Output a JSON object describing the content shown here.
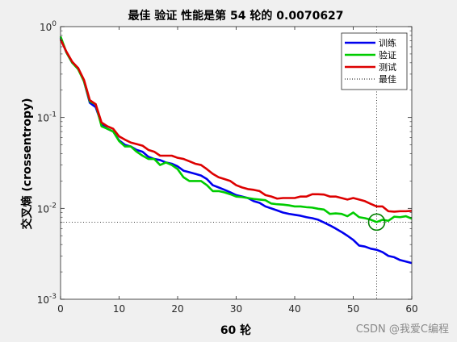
{
  "chart_data": {
    "type": "line",
    "title": "最佳 验证 性能是第 54 轮的 0.0070627",
    "xlabel": "60 轮",
    "ylabel": "交叉熵 (crossentropy)",
    "xlim": [
      0,
      60
    ],
    "ylim": [
      0.001,
      1
    ],
    "yscale": "log",
    "x_ticks": [
      0,
      10,
      20,
      30,
      40,
      50,
      60
    ],
    "x_tick_labels": [
      "0",
      "10",
      "20",
      "30",
      "40",
      "50",
      "60"
    ],
    "y_ticks": [
      0.001,
      0.01,
      0.1,
      1
    ],
    "y_tick_labels": [
      {
        "base": "10",
        "exp": "-3"
      },
      {
        "base": "10",
        "exp": "-2"
      },
      {
        "base": "10",
        "exp": "-1"
      },
      {
        "base": "10",
        "exp": "0"
      }
    ],
    "grid": false,
    "legend_position": "top-right",
    "series": [
      {
        "name": "训练",
        "color": "#0000ee",
        "x": [
          0,
          1,
          2,
          3,
          4,
          5,
          6,
          7,
          8,
          9,
          10,
          11,
          12,
          13,
          14,
          15,
          16,
          17,
          18,
          19,
          20,
          21,
          22,
          23,
          24,
          25,
          26,
          27,
          28,
          29,
          30,
          31,
          32,
          33,
          34,
          35,
          36,
          37,
          38,
          39,
          40,
          41,
          42,
          43,
          44,
          45,
          46,
          47,
          48,
          49,
          50,
          51,
          52,
          53,
          54,
          55,
          56,
          57,
          58,
          59,
          60
        ],
        "y": [
          0.75,
          0.52,
          0.4,
          0.35,
          0.25,
          0.145,
          0.13,
          0.085,
          0.075,
          0.07,
          0.056,
          0.05,
          0.048,
          0.044,
          0.042,
          0.037,
          0.035,
          0.034,
          0.032,
          0.031,
          0.029,
          0.026,
          0.025,
          0.024,
          0.023,
          0.021,
          0.018,
          0.017,
          0.016,
          0.015,
          0.014,
          0.0135,
          0.013,
          0.012,
          0.0115,
          0.0105,
          0.01,
          0.0095,
          0.009,
          0.0087,
          0.0085,
          0.0083,
          0.008,
          0.0078,
          0.0075,
          0.007,
          0.0065,
          0.006,
          0.0055,
          0.005,
          0.0045,
          0.0039,
          0.0038,
          0.0036,
          0.0035,
          0.0033,
          0.003,
          0.0029,
          0.0027,
          0.0026,
          0.0025
        ]
      },
      {
        "name": "验证",
        "color": "#00cc00",
        "x": [
          0,
          1,
          2,
          3,
          4,
          5,
          6,
          7,
          8,
          9,
          10,
          11,
          12,
          13,
          14,
          15,
          16,
          17,
          18,
          19,
          20,
          21,
          22,
          23,
          24,
          25,
          26,
          27,
          28,
          29,
          30,
          31,
          32,
          33,
          34,
          35,
          36,
          37,
          38,
          39,
          40,
          41,
          42,
          43,
          44,
          45,
          46,
          47,
          48,
          49,
          50,
          51,
          52,
          53,
          54,
          55,
          56,
          57,
          58,
          59,
          60
        ],
        "y": [
          0.78,
          0.52,
          0.4,
          0.34,
          0.25,
          0.15,
          0.14,
          0.08,
          0.075,
          0.07,
          0.055,
          0.048,
          0.048,
          0.042,
          0.038,
          0.035,
          0.035,
          0.03,
          0.032,
          0.03,
          0.027,
          0.022,
          0.02,
          0.02,
          0.02,
          0.018,
          0.0155,
          0.0155,
          0.015,
          0.0143,
          0.0135,
          0.0133,
          0.013,
          0.0127,
          0.0125,
          0.0123,
          0.0113,
          0.0111,
          0.011,
          0.0108,
          0.0105,
          0.0105,
          0.0103,
          0.0102,
          0.0099,
          0.0097,
          0.0087,
          0.0088,
          0.0087,
          0.0082,
          0.009,
          0.008,
          0.0078,
          0.0075,
          0.0070627,
          0.0075,
          0.0073,
          0.0081,
          0.008,
          0.0082,
          0.0077
        ]
      },
      {
        "name": "测试",
        "color": "#dd0000",
        "x": [
          0,
          1,
          2,
          3,
          4,
          5,
          6,
          7,
          8,
          9,
          10,
          11,
          12,
          13,
          14,
          15,
          16,
          17,
          18,
          19,
          20,
          21,
          22,
          23,
          24,
          25,
          26,
          27,
          28,
          29,
          30,
          31,
          32,
          33,
          34,
          35,
          36,
          37,
          38,
          39,
          40,
          41,
          42,
          43,
          44,
          45,
          46,
          47,
          48,
          49,
          50,
          51,
          52,
          53,
          54,
          55,
          56,
          57,
          58,
          59,
          60
        ],
        "y": [
          0.72,
          0.53,
          0.41,
          0.35,
          0.26,
          0.155,
          0.14,
          0.088,
          0.08,
          0.075,
          0.062,
          0.057,
          0.053,
          0.051,
          0.049,
          0.044,
          0.042,
          0.038,
          0.038,
          0.038,
          0.036,
          0.035,
          0.033,
          0.031,
          0.03,
          0.027,
          0.024,
          0.022,
          0.021,
          0.02,
          0.018,
          0.017,
          0.0163,
          0.016,
          0.0155,
          0.014,
          0.0135,
          0.0128,
          0.013,
          0.013,
          0.013,
          0.0135,
          0.0135,
          0.0143,
          0.0143,
          0.0142,
          0.0135,
          0.0135,
          0.013,
          0.0125,
          0.013,
          0.0125,
          0.012,
          0.0112,
          0.0105,
          0.0105,
          0.0093,
          0.0092,
          0.0093,
          0.0093,
          0.0094
        ]
      },
      {
        "name": "最佳",
        "color": "#000000",
        "style": "dotted",
        "best_epoch": 54,
        "best_value": 0.0070627
      }
    ]
  }
}
